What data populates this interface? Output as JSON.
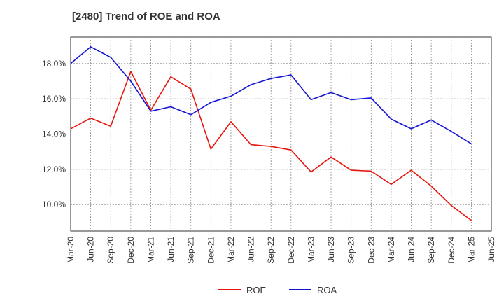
{
  "chart_data": {
    "type": "line",
    "title": "[2480]  Trend of ROE and ROA",
    "xlabel": "",
    "ylabel": "",
    "x": [
      "Mar-20",
      "Jun-20",
      "Sep-20",
      "Dec-20",
      "Mar-21",
      "Jun-21",
      "Sep-21",
      "Dec-21",
      "Mar-22",
      "Jun-22",
      "Sep-22",
      "Dec-22",
      "Mar-23",
      "Jun-23",
      "Sep-23",
      "Dec-23",
      "Mar-24",
      "Jun-24",
      "Sep-24",
      "Dec-24",
      "Mar-25",
      "Jun-25"
    ],
    "ylim": [
      8.5,
      19.5
    ],
    "yticks": [
      10.0,
      12.0,
      14.0,
      16.0,
      18.0
    ],
    "ytick_labels": [
      "10.0%",
      "12.0%",
      "14.0%",
      "16.0%",
      "18.0%"
    ],
    "grid": "dotted vertical and horizontal",
    "legend_position": "bottom-center",
    "series": [
      {
        "name": "ROE",
        "color": "#e8150d",
        "values": [
          14.3,
          14.9,
          14.45,
          17.55,
          15.35,
          17.25,
          16.55,
          13.15,
          14.7,
          13.4,
          13.3,
          13.1,
          11.85,
          12.7,
          11.95,
          11.9,
          11.15,
          11.95,
          11.05,
          9.95,
          9.1,
          null
        ]
      },
      {
        "name": "ROA",
        "color": "#1414d4",
        "values": [
          18.0,
          18.95,
          18.35,
          17.0,
          15.3,
          15.55,
          15.1,
          15.8,
          16.15,
          16.8,
          17.15,
          17.35,
          15.95,
          16.35,
          15.95,
          16.05,
          14.85,
          14.3,
          14.8,
          14.15,
          13.45,
          null
        ]
      }
    ]
  }
}
